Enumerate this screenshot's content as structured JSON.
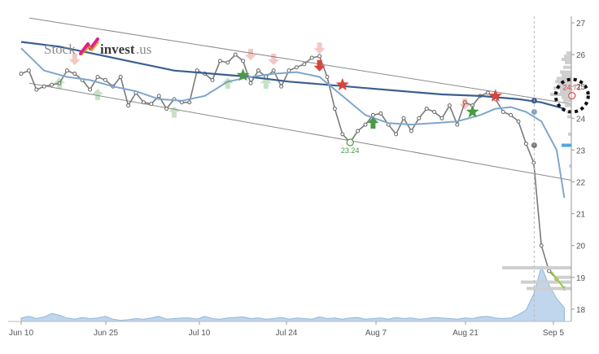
{
  "logo": {
    "part1": "Stock",
    "part2": "invest",
    "part3": ".us"
  },
  "colors": {
    "price": "#7a7a7a",
    "ma_long": "#3a5f8f",
    "ma_short": "#7fa6cc",
    "trend": "#8a8a8a",
    "buy": "#4a9a45",
    "sell": "#d9443a",
    "volume": "#a9c8e6",
    "bars": "#cfcfcf"
  },
  "chart_data": {
    "type": "line",
    "x_tick_labels": [
      "Jun 10",
      "Jun 25",
      "Jul 10",
      "Jul 24",
      "Aug 7",
      "Aug 21",
      "Sep 5"
    ],
    "y_ticks": [
      18,
      19,
      20,
      21,
      22,
      23,
      24,
      25,
      26,
      27
    ],
    "ylim": [
      17.5,
      27.2
    ],
    "annotations": [
      {
        "label": "23.24",
        "day": 43,
        "value": 23.24
      },
      {
        "label": "24.71",
        "day": 72,
        "value": 24.71
      }
    ],
    "series": [
      {
        "role": "price",
        "points": [
          [
            0,
            25.4
          ],
          [
            1,
            25.5
          ],
          [
            2,
            24.9
          ],
          [
            3,
            25.0
          ],
          [
            4,
            25.05
          ],
          [
            5,
            25.1
          ],
          [
            6,
            25.5
          ],
          [
            7,
            25.4
          ],
          [
            8,
            25.2
          ],
          [
            9,
            24.9
          ],
          [
            10,
            25.3
          ],
          [
            11,
            25.2
          ],
          [
            12,
            25.0
          ],
          [
            13,
            25.3
          ],
          [
            14,
            24.4
          ],
          [
            15,
            24.8
          ],
          [
            16,
            24.5
          ],
          [
            17,
            24.45
          ],
          [
            18,
            24.7
          ],
          [
            19,
            24.3
          ],
          [
            20,
            24.6
          ],
          [
            21,
            24.5
          ],
          [
            22,
            24.5
          ],
          [
            23,
            25.5
          ],
          [
            24,
            25.4
          ],
          [
            25,
            25.2
          ],
          [
            26,
            25.8
          ],
          [
            27,
            25.75
          ],
          [
            28,
            26.0
          ],
          [
            29,
            25.8
          ],
          [
            30,
            25.1
          ],
          [
            31,
            25.5
          ],
          [
            32,
            25.3
          ],
          [
            33,
            25.5
          ],
          [
            34,
            25.0
          ],
          [
            35,
            25.5
          ],
          [
            36,
            25.6
          ],
          [
            37,
            25.7
          ],
          [
            38,
            25.9
          ],
          [
            39,
            25.95
          ],
          [
            40,
            25.3
          ],
          [
            41,
            24.3
          ],
          [
            42,
            23.5
          ],
          [
            43,
            23.24
          ],
          [
            44,
            23.6
          ],
          [
            45,
            23.8
          ],
          [
            46,
            24.1
          ],
          [
            47,
            24.15
          ],
          [
            48,
            23.8
          ],
          [
            49,
            23.5
          ],
          [
            50,
            24.0
          ],
          [
            51,
            23.6
          ],
          [
            52,
            24.0
          ],
          [
            53,
            24.3
          ],
          [
            54,
            24.2
          ],
          [
            55,
            24.0
          ],
          [
            56,
            24.4
          ],
          [
            57,
            23.8
          ],
          [
            58,
            24.5
          ],
          [
            59,
            24.4
          ],
          [
            60,
            24.7
          ],
          [
            61,
            24.8
          ],
          [
            62,
            24.6
          ],
          [
            63,
            24.2
          ],
          [
            64,
            24.1
          ],
          [
            65,
            23.9
          ],
          [
            66,
            23.2
          ],
          [
            67,
            22.6
          ],
          [
            68,
            20.0
          ],
          [
            69,
            19.2
          ],
          [
            70,
            18.95
          ],
          [
            71,
            18.65
          ]
        ]
      },
      {
        "role": "ma_long",
        "points": [
          [
            0,
            26.4
          ],
          [
            5,
            26.25
          ],
          [
            10,
            26.0
          ],
          [
            15,
            25.75
          ],
          [
            20,
            25.5
          ],
          [
            25,
            25.4
          ],
          [
            30,
            25.3
          ],
          [
            35,
            25.15
          ],
          [
            40,
            25.05
          ],
          [
            45,
            24.95
          ],
          [
            50,
            24.85
          ],
          [
            55,
            24.75
          ],
          [
            60,
            24.7
          ],
          [
            65,
            24.6
          ],
          [
            68,
            24.5
          ],
          [
            71,
            24.3
          ]
        ]
      },
      {
        "role": "ma_short",
        "points": [
          [
            0,
            26.2
          ],
          [
            3,
            25.5
          ],
          [
            6,
            25.3
          ],
          [
            9,
            25.2
          ],
          [
            12,
            25.0
          ],
          [
            15,
            24.85
          ],
          [
            18,
            24.6
          ],
          [
            21,
            24.55
          ],
          [
            24,
            24.7
          ],
          [
            27,
            25.15
          ],
          [
            30,
            25.3
          ],
          [
            33,
            25.4
          ],
          [
            36,
            25.45
          ],
          [
            39,
            25.3
          ],
          [
            42,
            24.7
          ],
          [
            45,
            24.1
          ],
          [
            48,
            23.85
          ],
          [
            51,
            23.8
          ],
          [
            54,
            23.85
          ],
          [
            57,
            23.9
          ],
          [
            60,
            24.1
          ],
          [
            62,
            24.3
          ],
          [
            64,
            24.35
          ],
          [
            66,
            24.2
          ],
          [
            68,
            23.9
          ],
          [
            70,
            23.0
          ],
          [
            71,
            21.5
          ]
        ]
      }
    ],
    "trend_channel": {
      "upper": [
        [
          0,
          27.15
        ],
        [
          72,
          24.45
        ]
      ],
      "lower": [
        [
          0,
          25.1
        ],
        [
          72,
          22.05
        ]
      ]
    },
    "signals": [
      {
        "kind": "buy",
        "strength": "faint",
        "day": 5,
        "value": 25.1
      },
      {
        "kind": "sell",
        "strength": "faint",
        "day": 7,
        "value": 25.85
      },
      {
        "kind": "buy",
        "strength": "faint",
        "day": 10,
        "value": 24.75
      },
      {
        "kind": "buy",
        "strength": "faint",
        "day": 20,
        "value": 24.2
      },
      {
        "kind": "buy",
        "strength": "faint",
        "day": 27,
        "value": 25.1
      },
      {
        "kind": "buy",
        "strength": "strong_star",
        "day": 29,
        "value": 25.35
      },
      {
        "kind": "sell",
        "strength": "faint",
        "day": 30,
        "value": 26.0
      },
      {
        "kind": "buy",
        "strength": "faint",
        "day": 32,
        "value": 25.1
      },
      {
        "kind": "sell",
        "strength": "faint",
        "day": 33,
        "value": 25.85
      },
      {
        "kind": "sell",
        "strength": "faint",
        "day": 39,
        "value": 26.2
      },
      {
        "kind": "sell",
        "strength": "strong",
        "day": 39,
        "value": 25.65
      },
      {
        "kind": "sell",
        "strength": "strong_star",
        "day": 42,
        "value": 25.05
      },
      {
        "kind": "buy",
        "strength": "strong",
        "day": 46,
        "value": 23.85
      },
      {
        "kind": "sell",
        "strength": "faint",
        "day": 58,
        "value": 24.45
      },
      {
        "kind": "buy",
        "strength": "strong_star",
        "day": 59,
        "value": 24.2
      },
      {
        "kind": "sell",
        "strength": "strong_star",
        "day": 62,
        "value": 24.7
      }
    ],
    "markers": [
      {
        "role": "ma_long_end",
        "day": 66,
        "value": 24.55
      },
      {
        "role": "ma_short_end",
        "day": 66,
        "value": 24.2
      },
      {
        "role": "price_marker",
        "day": 66,
        "value": 23.15
      }
    ],
    "volume_profile": [
      [
        26.05,
        6
      ],
      [
        25.95,
        9
      ],
      [
        25.85,
        12
      ],
      [
        25.75,
        8
      ],
      [
        25.6,
        10
      ],
      [
        25.45,
        14
      ],
      [
        25.35,
        12
      ],
      [
        25.25,
        18
      ],
      [
        25.15,
        20
      ],
      [
        25.05,
        16
      ],
      [
        24.95,
        22
      ],
      [
        24.85,
        14
      ],
      [
        24.75,
        26
      ],
      [
        24.65,
        12
      ],
      [
        24.55,
        10
      ],
      [
        24.4,
        8
      ],
      [
        24.2,
        6
      ],
      [
        24.05,
        5
      ],
      [
        23.5,
        4
      ],
      [
        23.15,
        4
      ],
      [
        22.5,
        3
      ],
      [
        19.3,
        85
      ],
      [
        19.0,
        22
      ],
      [
        18.85,
        62
      ],
      [
        18.65,
        55
      ]
    ],
    "volume_area": [
      0.3,
      0.45,
      0.25,
      0.4,
      0.7,
      0.55,
      0.3,
      0.2,
      0.35,
      0.25,
      0.3,
      0.45,
      0.2,
      0.1,
      0.15,
      0.25,
      0.2,
      0.3,
      0.45,
      0.2,
      0.25,
      0.3,
      0.3,
      0.2,
      0.45,
      0.25,
      0.2,
      0.3,
      0.35,
      0.4,
      0.25,
      0.3,
      0.2,
      0.25,
      0.35,
      0.2,
      0.3,
      0.25,
      0.2,
      0.4,
      0.25,
      0.3,
      0.2,
      0.3,
      0.35,
      0.2,
      0.25,
      0.3,
      0.2,
      0.35,
      0.25,
      0.3,
      0.2,
      0.25,
      0.35,
      0.3,
      0.25,
      0.2,
      0.3,
      0.25,
      0.4,
      0.45,
      0.3,
      0.25,
      0.3,
      0.6,
      1.0,
      2.4,
      4.8,
      3.2,
      2.0,
      1.2
    ],
    "cursor_day": 66
  }
}
